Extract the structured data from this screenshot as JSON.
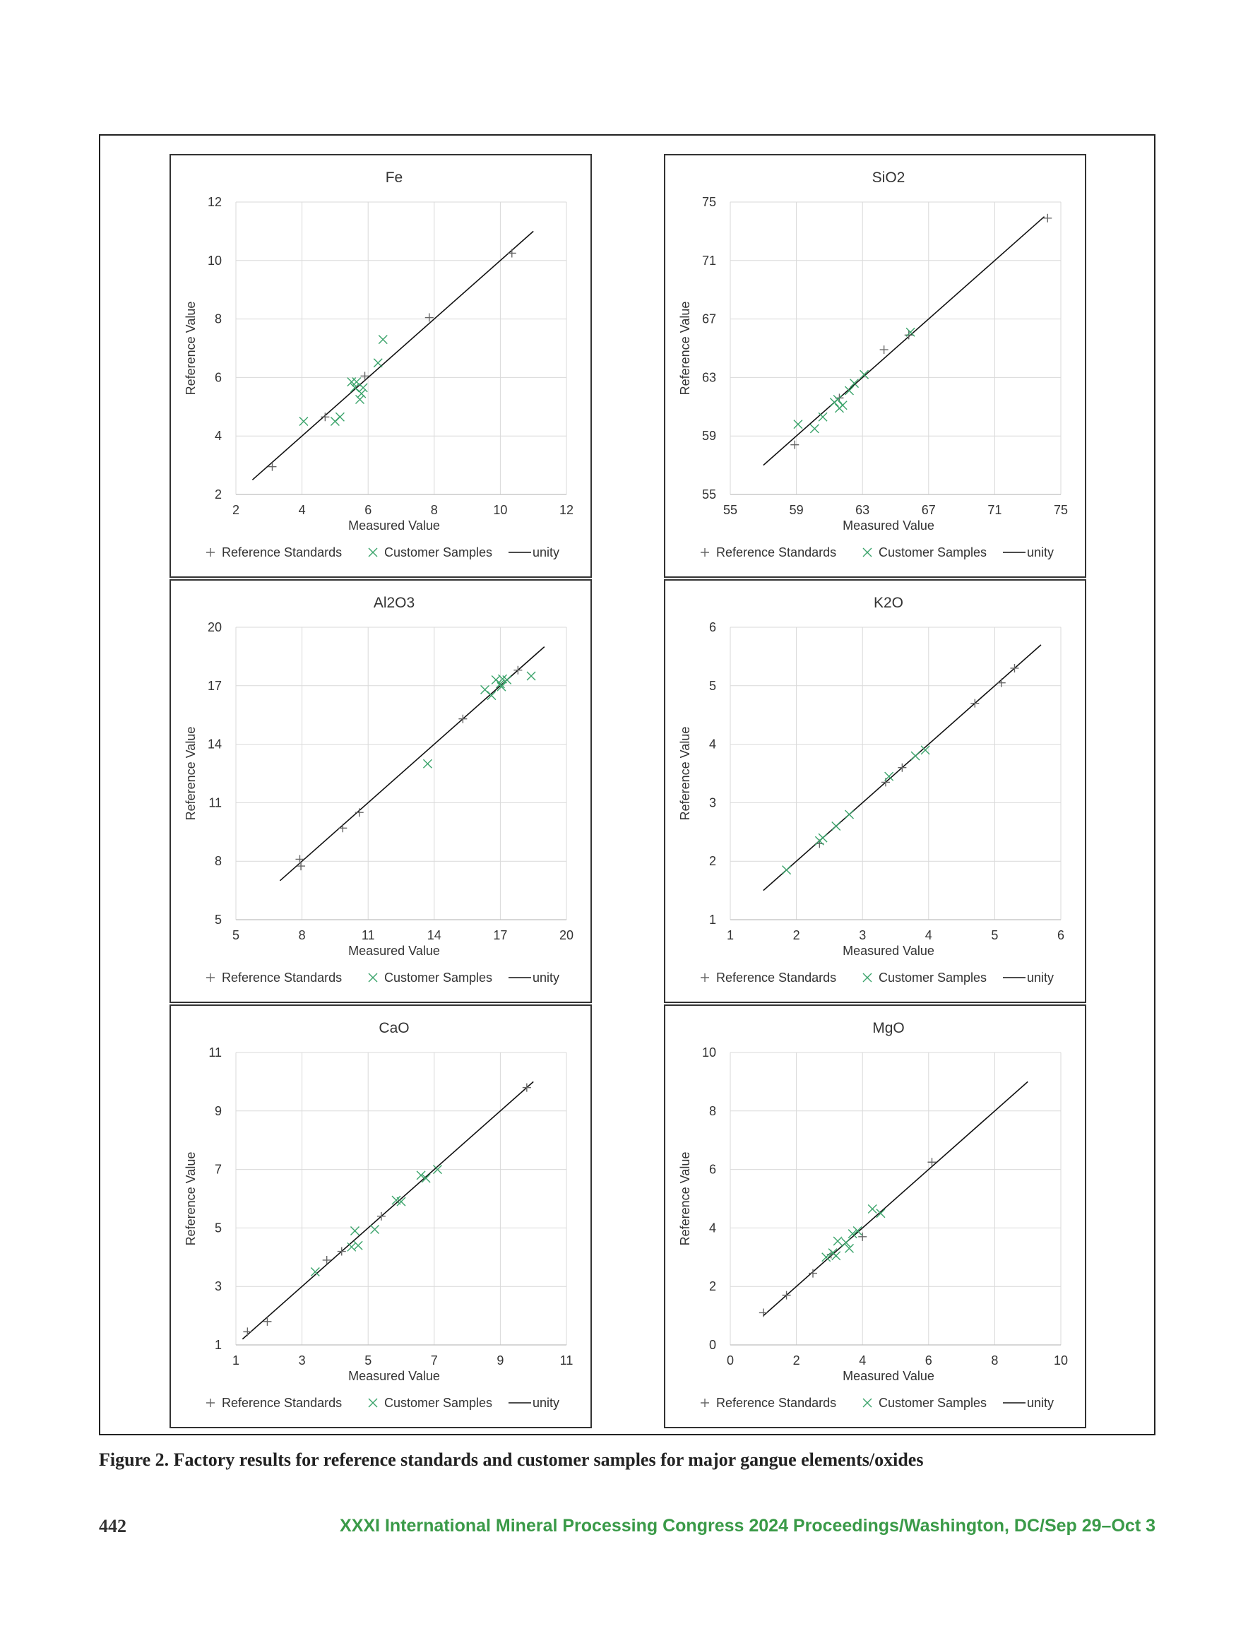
{
  "caption": "Figure 2. Factory results for reference standards and customer samples for major gangue elements/oxides",
  "footer": {
    "page_number": "442",
    "running_header": "XXXI International Mineral Processing Congress 2024 Proceedings/Washington, DC/Sep 29–Oct 3"
  },
  "legend_labels": {
    "reference": "Reference Standards",
    "customer": "Customer Samples",
    "unity": "unity"
  },
  "colors": {
    "reference_marker": "#666666",
    "customer_marker": "#3aa36a",
    "customer_marker_gray": "#888888",
    "unity_line": "#111111",
    "grid": "#d9d9d9"
  },
  "chart_data": [
    {
      "type": "scatter",
      "title": "Fe",
      "xlabel": "Measured Value",
      "ylabel": "Reference Value",
      "xlim": [
        2,
        12
      ],
      "ylim": [
        2,
        12
      ],
      "xticks": [
        2,
        4,
        6,
        8,
        10,
        12
      ],
      "yticks": [
        2,
        4,
        6,
        8,
        10,
        12
      ],
      "unity": [
        [
          2.5,
          2.5
        ],
        [
          11,
          11
        ]
      ],
      "customer_color": "green",
      "grid": true,
      "legend_position": "bottom",
      "series": [
        {
          "name": "Reference Standards",
          "marker": "plus",
          "points": [
            [
              3.1,
              2.95
            ],
            [
              4.7,
              4.65
            ],
            [
              5.9,
              6.05
            ],
            [
              7.85,
              8.05
            ],
            [
              10.35,
              10.25
            ]
          ]
        },
        {
          "name": "Customer Samples",
          "marker": "x",
          "points": [
            [
              4.05,
              4.5
            ],
            [
              5.0,
              4.5
            ],
            [
              5.15,
              4.65
            ],
            [
              5.5,
              5.85
            ],
            [
              5.6,
              5.65
            ],
            [
              5.75,
              5.25
            ],
            [
              5.8,
              5.45
            ],
            [
              5.85,
              5.65
            ],
            [
              6.3,
              6.5
            ],
            [
              6.45,
              7.3
            ],
            [
              5.65,
              5.85
            ]
          ]
        },
        {
          "name": "unity",
          "marker": "line"
        }
      ]
    },
    {
      "type": "scatter",
      "title": "SiO2",
      "xlabel": "Measured Value",
      "ylabel": "Reference Value",
      "xlim": [
        55,
        75
      ],
      "ylim": [
        55,
        75
      ],
      "xticks": [
        55,
        59,
        63,
        67,
        71,
        75
      ],
      "yticks": [
        55,
        59,
        63,
        67,
        71,
        75
      ],
      "unity": [
        [
          57,
          57
        ],
        [
          74,
          74
        ]
      ],
      "customer_color": "green",
      "grid": true,
      "legend_position": "bottom",
      "series": [
        {
          "name": "Reference Standards",
          "marker": "plus",
          "points": [
            [
              58.9,
              58.4
            ],
            [
              61.6,
              61.6
            ],
            [
              64.3,
              64.9
            ],
            [
              65.8,
              65.9
            ],
            [
              74.2,
              73.9
            ]
          ]
        },
        {
          "name": "Customer Samples",
          "marker": "x",
          "points": [
            [
              59.1,
              59.8
            ],
            [
              60.1,
              59.5
            ],
            [
              60.6,
              60.3
            ],
            [
              61.3,
              61.3
            ],
            [
              61.6,
              60.9
            ],
            [
              61.8,
              61.1
            ],
            [
              62.2,
              62.1
            ],
            [
              62.5,
              62.6
            ],
            [
              63.1,
              63.2
            ],
            [
              61.5,
              61.5
            ],
            [
              65.9,
              66.1
            ]
          ]
        },
        {
          "name": "unity",
          "marker": "line"
        }
      ]
    },
    {
      "type": "scatter",
      "title": "Al2O3",
      "xlabel": "Measured Value",
      "ylabel": "Reference Value",
      "xlim": [
        5,
        20
      ],
      "ylim": [
        5,
        20
      ],
      "xticks": [
        5,
        8,
        11,
        14,
        17,
        20
      ],
      "yticks": [
        5,
        8,
        11,
        14,
        17,
        20
      ],
      "unity": [
        [
          7,
          7
        ],
        [
          19,
          19
        ]
      ],
      "customer_color": "green",
      "grid": true,
      "legend_position": "bottom",
      "series": [
        {
          "name": "Reference Standards",
          "marker": "plus",
          "points": [
            [
              7.9,
              8.1
            ],
            [
              7.95,
              7.75
            ],
            [
              9.85,
              9.7
            ],
            [
              10.6,
              10.5
            ],
            [
              15.3,
              15.3
            ],
            [
              17.8,
              17.8
            ]
          ]
        },
        {
          "name": "Customer Samples",
          "marker": "x",
          "points": [
            [
              13.7,
              13.0
            ],
            [
              16.3,
              16.8
            ],
            [
              16.6,
              16.5
            ],
            [
              16.8,
              17.3
            ],
            [
              17.0,
              17.1
            ],
            [
              17.1,
              17.35
            ],
            [
              17.3,
              17.3
            ],
            [
              18.4,
              17.5
            ],
            [
              17.05,
              16.95
            ]
          ]
        },
        {
          "name": "unity",
          "marker": "line"
        }
      ]
    },
    {
      "type": "scatter",
      "title": "K2O",
      "xlabel": "Measured Value",
      "ylabel": "Reference Value",
      "xlim": [
        1,
        6
      ],
      "ylim": [
        1,
        6
      ],
      "xticks": [
        1,
        2,
        3,
        4,
        5,
        6
      ],
      "yticks": [
        1,
        2,
        3,
        4,
        5,
        6
      ],
      "unity": [
        [
          1.5,
          1.5
        ],
        [
          5.7,
          5.7
        ]
      ],
      "customer_color": "green",
      "grid": true,
      "legend_position": "bottom",
      "series": [
        {
          "name": "Reference Standards",
          "marker": "plus",
          "points": [
            [
              2.35,
              2.3
            ],
            [
              3.35,
              3.35
            ],
            [
              4.7,
              4.7
            ],
            [
              5.1,
              5.05
            ],
            [
              5.3,
              5.3
            ],
            [
              3.6,
              3.6
            ]
          ]
        },
        {
          "name": "Customer Samples",
          "marker": "x",
          "points": [
            [
              1.85,
              1.85
            ],
            [
              2.4,
              2.4
            ],
            [
              2.6,
              2.6
            ],
            [
              2.8,
              2.8
            ],
            [
              3.4,
              3.45
            ],
            [
              3.8,
              3.8
            ],
            [
              3.95,
              3.9
            ],
            [
              2.35,
              2.35
            ]
          ]
        },
        {
          "name": "unity",
          "marker": "line"
        }
      ]
    },
    {
      "type": "scatter",
      "title": "CaO",
      "xlabel": "Measured Value",
      "ylabel": "Reference Value",
      "xlim": [
        1,
        11
      ],
      "ylim": [
        1,
        11
      ],
      "xticks": [
        1,
        3,
        5,
        7,
        9,
        11
      ],
      "yticks": [
        1,
        3,
        5,
        7,
        9,
        11
      ],
      "unity": [
        [
          1.2,
          1.2
        ],
        [
          10,
          10
        ]
      ],
      "customer_color": "green",
      "grid": true,
      "legend_position": "bottom",
      "series": [
        {
          "name": "Reference Standards",
          "marker": "plus",
          "points": [
            [
              1.35,
              1.45
            ],
            [
              1.95,
              1.8
            ],
            [
              3.75,
              3.9
            ],
            [
              4.2,
              4.2
            ],
            [
              5.4,
              5.4
            ],
            [
              9.8,
              9.8
            ]
          ]
        },
        {
          "name": "Customer Samples",
          "marker": "x",
          "points": [
            [
              3.4,
              3.5
            ],
            [
              4.5,
              4.35
            ],
            [
              4.6,
              4.9
            ],
            [
              4.7,
              4.4
            ],
            [
              5.2,
              4.95
            ],
            [
              5.85,
              5.95
            ],
            [
              6.0,
              5.9
            ],
            [
              6.6,
              6.8
            ],
            [
              6.75,
              6.7
            ],
            [
              7.1,
              7.0
            ]
          ]
        },
        {
          "name": "unity",
          "marker": "line"
        }
      ]
    },
    {
      "type": "scatter",
      "title": "MgO",
      "xlabel": "Measured Value",
      "ylabel": "Reference Value",
      "xlim": [
        0,
        10
      ],
      "ylim": [
        0,
        10
      ],
      "xticks": [
        0,
        2,
        4,
        6,
        8,
        10
      ],
      "yticks": [
        0,
        2,
        4,
        6,
        8,
        10
      ],
      "unity": [
        [
          1,
          1
        ],
        [
          9,
          9
        ]
      ],
      "customer_color": "green",
      "grid": true,
      "legend_position": "bottom",
      "series": [
        {
          "name": "Reference Standards",
          "marker": "plus",
          "points": [
            [
              1.0,
              1.1
            ],
            [
              1.7,
              1.7
            ],
            [
              2.5,
              2.45
            ],
            [
              3.05,
              3.1
            ],
            [
              4.0,
              3.7
            ],
            [
              6.1,
              6.25
            ]
          ]
        },
        {
          "name": "Customer Samples",
          "marker": "x",
          "points": [
            [
              2.9,
              3.0
            ],
            [
              3.1,
              3.15
            ],
            [
              3.25,
              3.55
            ],
            [
              3.5,
              3.5
            ],
            [
              3.6,
              3.3
            ],
            [
              3.7,
              3.8
            ],
            [
              3.85,
              3.9
            ],
            [
              4.3,
              4.65
            ],
            [
              4.55,
              4.5
            ],
            [
              3.2,
              3.05
            ]
          ]
        },
        {
          "name": "unity",
          "marker": "line"
        }
      ]
    }
  ]
}
